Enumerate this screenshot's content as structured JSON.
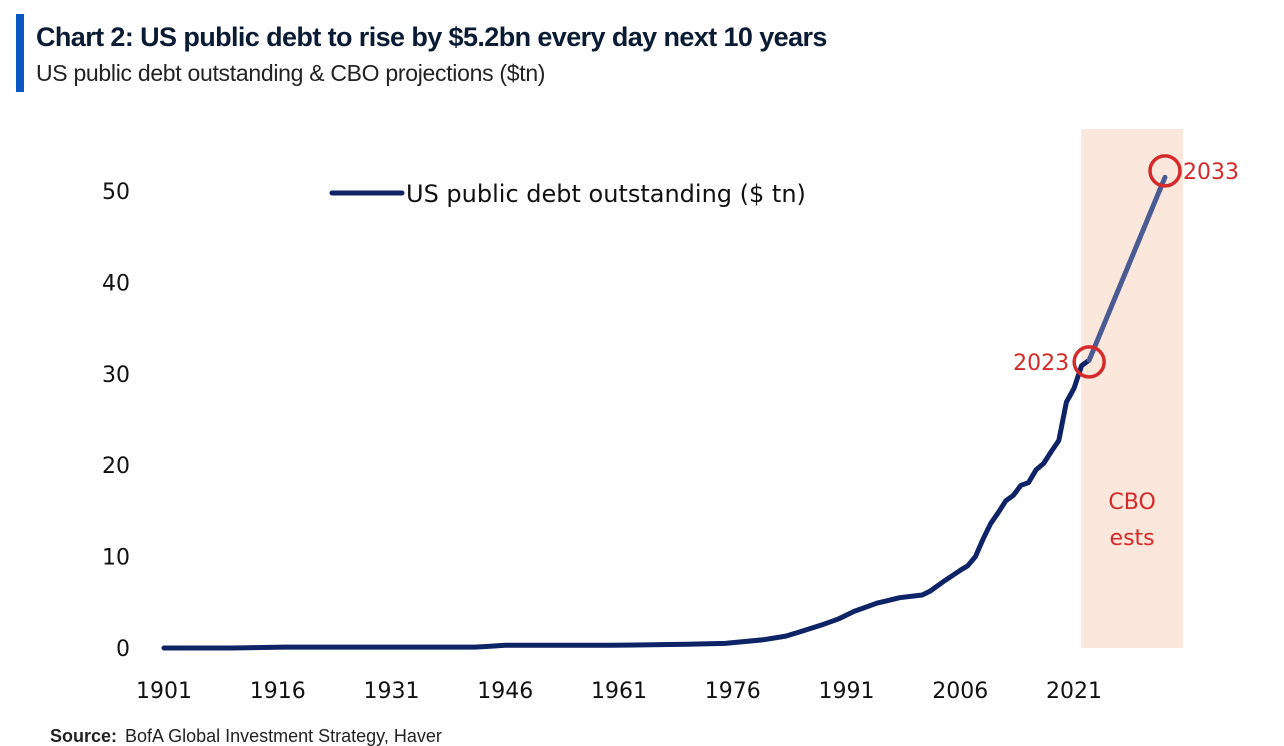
{
  "header": {
    "title": "Chart 2: US public debt to rise by $5.2bn every day next 10 years",
    "subtitle": "US public debt outstanding & CBO projections ($tn)"
  },
  "footer": {
    "source_label": "Source:",
    "source_text": "BofA Global Investment Strategy, Haver"
  },
  "colors": {
    "line": "#0f2466",
    "projection_line": "#4a5a93",
    "shade": "#fbe7dc",
    "annotation": "#d42a2a",
    "accent_bar": "#0a57c2"
  },
  "chart_data": {
    "type": "line",
    "title": "",
    "xlabel": "",
    "ylabel": "",
    "xlim": [
      1901,
      2033
    ],
    "ylim": [
      0,
      50
    ],
    "x_ticks": [
      "1901",
      "1916",
      "1931",
      "1946",
      "1961",
      "1976",
      "1991",
      "2006",
      "2021"
    ],
    "y_ticks": [
      "0",
      "10",
      "20",
      "30",
      "40",
      "50"
    ],
    "grid": false,
    "legend_position": "top-left",
    "series": [
      {
        "name": "US public debt outstanding ($ tn)",
        "x": [
          1901,
          1910,
          1917,
          1920,
          1930,
          1940,
          1942,
          1944,
          1946,
          1950,
          1960,
          1970,
          1975,
          1980,
          1983,
          1985,
          1988,
          1990,
          1992,
          1995,
          1998,
          2000,
          2001,
          2002,
          2004,
          2006,
          2007,
          2008,
          2009,
          2010,
          2011,
          2012,
          2013,
          2014,
          2015,
          2016,
          2017,
          2018,
          2019,
          2020,
          2021,
          2022,
          2023,
          2024,
          2026,
          2028,
          2030,
          2033
        ],
        "y": [
          0.0,
          0.0,
          0.1,
          0.1,
          0.1,
          0.1,
          0.1,
          0.2,
          0.3,
          0.3,
          0.3,
          0.4,
          0.5,
          0.9,
          1.3,
          1.8,
          2.6,
          3.2,
          4.0,
          4.9,
          5.5,
          5.7,
          5.8,
          6.2,
          7.4,
          8.5,
          9.0,
          10.0,
          11.9,
          13.6,
          14.8,
          16.1,
          16.7,
          17.8,
          18.1,
          19.5,
          20.2,
          21.5,
          22.7,
          26.9,
          28.4,
          30.9,
          31.5,
          33.5,
          37.5,
          41.5,
          45.5,
          51.5
        ]
      }
    ],
    "projection": {
      "from": 2023,
      "to": 2033,
      "label_line1": "CBO",
      "label_line2": "ests"
    },
    "annotations": [
      {
        "x": 2023,
        "y": 31.3,
        "label": "2023",
        "side": "left"
      },
      {
        "x": 2033,
        "y": 52.2,
        "label": "2033",
        "side": "right"
      }
    ]
  }
}
